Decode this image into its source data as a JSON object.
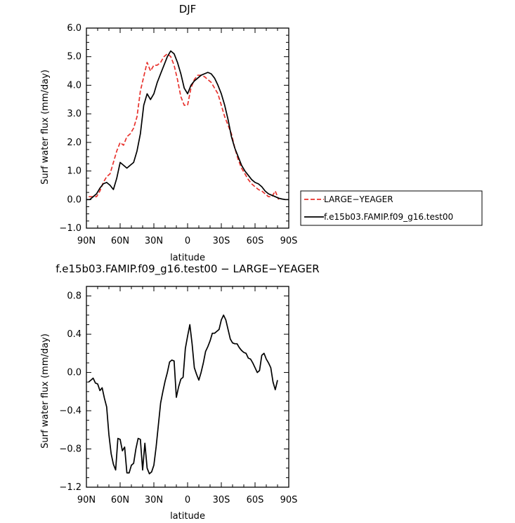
{
  "chart_data": [
    {
      "type": "line",
      "title": "DJF",
      "xlabel": "latitude",
      "ylabel": "Surf water flux (mm/day)",
      "xlim": [
        -90,
        90
      ],
      "ylim": [
        -1.0,
        6.0
      ],
      "xticks": [
        -90,
        -60,
        -30,
        0,
        30,
        60,
        90
      ],
      "xtick_labels": [
        "90N",
        "60N",
        "30N",
        "0",
        "30S",
        "60S",
        "90S"
      ],
      "yticks": [
        -1.0,
        0.0,
        1.0,
        2.0,
        3.0,
        4.0,
        5.0,
        6.0
      ],
      "ytick_labels": [
        "−1.0",
        "0.0",
        "1.0",
        "2.0",
        "3.0",
        "4.0",
        "5.0",
        "6.0"
      ],
      "legend_position": "right",
      "series": [
        {
          "name": "LARGE−YEAGER",
          "color": "#e8322d",
          "dash": "dashed",
          "x": [
            -88,
            -84,
            -81,
            -78,
            -75,
            -72,
            -69,
            -66,
            -63,
            -60,
            -57,
            -54,
            -51,
            -48,
            -45,
            -42,
            -39,
            -36,
            -33,
            -30,
            -27,
            -24,
            -21,
            -18,
            -15,
            -12,
            -9,
            -6,
            -3,
            0,
            3,
            6,
            9,
            12,
            15,
            18,
            21,
            24,
            27,
            30,
            33,
            36,
            39,
            42,
            45,
            48,
            51,
            54,
            57,
            60,
            63,
            66,
            69,
            72,
            75,
            78,
            81
          ],
          "y": [
            0.1,
            0.1,
            0.1,
            0.3,
            0.6,
            0.8,
            0.9,
            1.3,
            1.7,
            2.0,
            1.9,
            2.2,
            2.3,
            2.5,
            2.9,
            3.8,
            4.3,
            4.8,
            4.5,
            4.7,
            4.7,
            4.8,
            5.0,
            5.1,
            5.0,
            4.7,
            4.2,
            3.6,
            3.3,
            3.3,
            3.9,
            4.2,
            4.35,
            4.35,
            4.3,
            4.2,
            4.1,
            3.9,
            3.7,
            3.3,
            2.9,
            2.6,
            2.3,
            1.8,
            1.4,
            1.1,
            0.9,
            0.7,
            0.55,
            0.45,
            0.35,
            0.3,
            0.2,
            0.1,
            0.1,
            0.3,
            0.0
          ]
        },
        {
          "name": "f.e15b03.FAMIP.f09_g16.test00",
          "color": "#000000",
          "dash": "solid",
          "x": [
            -90,
            -87,
            -84,
            -81,
            -78,
            -75,
            -72,
            -69,
            -66,
            -63,
            -60,
            -57,
            -54,
            -51,
            -48,
            -45,
            -42,
            -39,
            -36,
            -33,
            -30,
            -27,
            -24,
            -21,
            -18,
            -15,
            -12,
            -9,
            -6,
            -3,
            0,
            3,
            6,
            9,
            12,
            15,
            18,
            21,
            24,
            27,
            30,
            33,
            36,
            39,
            42,
            45,
            48,
            51,
            54,
            57,
            60,
            63,
            66,
            69,
            72,
            75,
            78,
            81,
            84,
            87,
            90
          ],
          "y": [
            0.0,
            0.0,
            0.1,
            0.2,
            0.4,
            0.55,
            0.6,
            0.5,
            0.35,
            0.75,
            1.3,
            1.2,
            1.1,
            1.2,
            1.3,
            1.7,
            2.3,
            3.3,
            3.7,
            3.5,
            3.7,
            4.1,
            4.4,
            4.7,
            5.0,
            5.2,
            5.1,
            4.8,
            4.4,
            3.9,
            3.7,
            4.0,
            4.15,
            4.25,
            4.35,
            4.4,
            4.45,
            4.4,
            4.25,
            4.0,
            3.7,
            3.3,
            2.8,
            2.2,
            1.8,
            1.5,
            1.2,
            1.0,
            0.85,
            0.7,
            0.6,
            0.55,
            0.45,
            0.3,
            0.2,
            0.15,
            0.1,
            0.05,
            0.02,
            0.0,
            0.0
          ]
        }
      ]
    },
    {
      "type": "line",
      "title": "f.e15b03.FAMIP.f09_g16.test00 − LARGE−YEAGER",
      "xlabel": "latitude",
      "ylabel": "Surf water flux (mm/day)",
      "xlim": [
        -90,
        90
      ],
      "ylim": [
        -1.2,
        0.9
      ],
      "xticks": [
        -90,
        -60,
        -30,
        0,
        30,
        60,
        90
      ],
      "xtick_labels": [
        "90N",
        "60N",
        "30N",
        "0",
        "30S",
        "60S",
        "90S"
      ],
      "yticks": [
        -1.2,
        -0.8,
        -0.4,
        0.0,
        0.4,
        0.8
      ],
      "ytick_labels": [
        "−1.2",
        "−0.8",
        "−0.4",
        "0.0",
        "0.4",
        "0.8"
      ],
      "series": [
        {
          "name": "",
          "color": "#000000",
          "dash": "solid",
          "x": [
            -88,
            -86,
            -84,
            -82,
            -80,
            -78,
            -76,
            -74,
            -72,
            -70,
            -68,
            -66,
            -64,
            -62,
            -60,
            -58,
            -56,
            -54,
            -52,
            -50,
            -48,
            -46,
            -44,
            -42,
            -40,
            -38,
            -36,
            -34,
            -32,
            -30,
            -28,
            -26,
            -24,
            -22,
            -20,
            -18,
            -16,
            -14,
            -12,
            -10,
            -8,
            -6,
            -4,
            -2,
            0,
            2,
            4,
            6,
            8,
            10,
            12,
            14,
            16,
            18,
            20,
            22,
            24,
            26,
            28,
            30,
            32,
            34,
            36,
            38,
            40,
            42,
            44,
            46,
            48,
            50,
            52,
            54,
            56,
            58,
            60,
            62,
            64,
            66,
            68,
            70,
            72,
            74,
            76,
            78,
            80
          ],
          "y": [
            -0.1,
            -0.08,
            -0.06,
            -0.11,
            -0.12,
            -0.19,
            -0.16,
            -0.27,
            -0.36,
            -0.65,
            -0.85,
            -0.96,
            -1.02,
            -0.69,
            -0.7,
            -0.82,
            -0.78,
            -1.05,
            -1.05,
            -0.97,
            -0.95,
            -0.8,
            -0.69,
            -0.7,
            -1.02,
            -0.74,
            -1.0,
            -1.06,
            -1.04,
            -0.97,
            -0.78,
            -0.55,
            -0.32,
            -0.2,
            -0.09,
            0.0,
            0.11,
            0.13,
            0.12,
            -0.26,
            -0.15,
            -0.07,
            -0.05,
            0.25,
            0.38,
            0.5,
            0.3,
            0.05,
            -0.02,
            -0.08,
            0.0,
            0.1,
            0.22,
            0.27,
            0.33,
            0.41,
            0.41,
            0.43,
            0.45,
            0.55,
            0.6,
            0.55,
            0.45,
            0.35,
            0.31,
            0.3,
            0.3,
            0.26,
            0.23,
            0.21,
            0.2,
            0.15,
            0.14,
            0.1,
            0.05,
            0.0,
            0.02,
            0.18,
            0.2,
            0.14,
            0.1,
            0.05,
            -0.1,
            -0.18,
            -0.08
          ]
        }
      ]
    }
  ]
}
